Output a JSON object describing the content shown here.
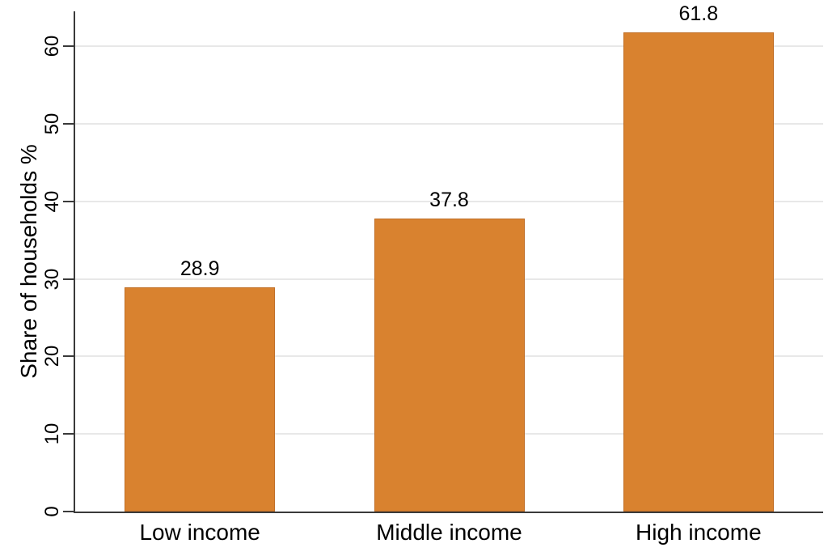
{
  "chart_data": {
    "type": "bar",
    "title": "",
    "xlabel": "",
    "ylabel": "Share of households %",
    "categories": [
      "Low income",
      "Middle income",
      "High income"
    ],
    "values": [
      28.9,
      37.8,
      61.8
    ],
    "value_labels": [
      "28.9",
      "37.8",
      "61.8"
    ],
    "yticks": [
      0,
      10,
      20,
      30,
      40,
      50,
      60
    ],
    "ylim": [
      0,
      64.5
    ],
    "grid": "horizontal",
    "legend": "none",
    "colors": {
      "bar_fill": "#d9822f",
      "bar_border": "#c06e26",
      "gridline": "#e8e8e8",
      "axis": "#3a3a3a",
      "text": "#000000",
      "background": "#ffffff"
    }
  }
}
